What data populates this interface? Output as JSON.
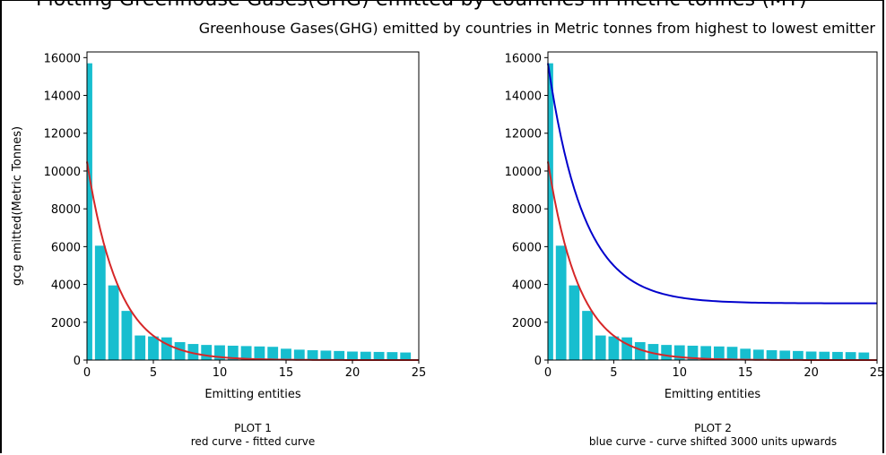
{
  "page": {
    "cut_header": "Plotting Greenhouse Gases(GHG) emitted by countries in metric tonnes (MT)",
    "title": "Greenhouse Gases(GHG) emitted by countries in Metric tonnes from highest to lowest emitter"
  },
  "colors": {
    "bar": "#17becf",
    "fitted": "#d62728",
    "shifted": "#0000cc"
  },
  "chart_data": [
    {
      "type": "bar",
      "x": [
        0,
        1,
        2,
        3,
        4,
        5,
        6,
        7,
        8,
        9,
        10,
        11,
        12,
        13,
        14,
        15,
        16,
        17,
        18,
        19,
        20,
        21,
        22,
        23,
        24
      ],
      "values": [
        15700,
        6050,
        3950,
        2600,
        1300,
        1250,
        1200,
        950,
        850,
        800,
        780,
        760,
        740,
        720,
        700,
        600,
        550,
        520,
        500,
        480,
        450,
        440,
        430,
        420,
        400
      ],
      "xlabel": "Emitting entities",
      "ylabel": "gcg emitted(Metric Tonnes)",
      "xlim": [
        0,
        25
      ],
      "ylim": [
        0,
        16000
      ],
      "xticks": [
        "0",
        "5",
        "10",
        "15",
        "20",
        "25"
      ],
      "yticks": [
        "0",
        "2000",
        "4000",
        "6000",
        "8000",
        "10000",
        "12000",
        "14000",
        "16000"
      ],
      "caption_line1": "PLOT 1",
      "caption_line2": "red curve - fitted curve",
      "curves": [
        {
          "color": "red",
          "a": 10500,
          "k": 0.42,
          "c": 0
        }
      ]
    },
    {
      "type": "bar",
      "x": [
        0,
        1,
        2,
        3,
        4,
        5,
        6,
        7,
        8,
        9,
        10,
        11,
        12,
        13,
        14,
        15,
        16,
        17,
        18,
        19,
        20,
        21,
        22,
        23,
        24
      ],
      "values": [
        15700,
        6050,
        3950,
        2600,
        1300,
        1250,
        1200,
        950,
        850,
        800,
        780,
        760,
        740,
        720,
        700,
        600,
        550,
        520,
        500,
        480,
        450,
        440,
        430,
        420,
        400
      ],
      "xlabel": "Emitting entities",
      "ylabel": "",
      "xlim": [
        0,
        25
      ],
      "ylim": [
        0,
        16000
      ],
      "xticks": [
        "0",
        "5",
        "10",
        "15",
        "20",
        "25"
      ],
      "yticks": [
        "0",
        "2000",
        "4000",
        "6000",
        "8000",
        "10000",
        "12000",
        "14000",
        "16000"
      ],
      "caption_line1": "PLOT 2",
      "caption_line2": "blue curve - curve shifted 3000 units upwards",
      "curves": [
        {
          "color": "red",
          "a": 10500,
          "k": 0.42,
          "c": 0
        },
        {
          "color": "blue",
          "a": 12700,
          "k": 0.37,
          "c": 3000
        }
      ]
    }
  ]
}
